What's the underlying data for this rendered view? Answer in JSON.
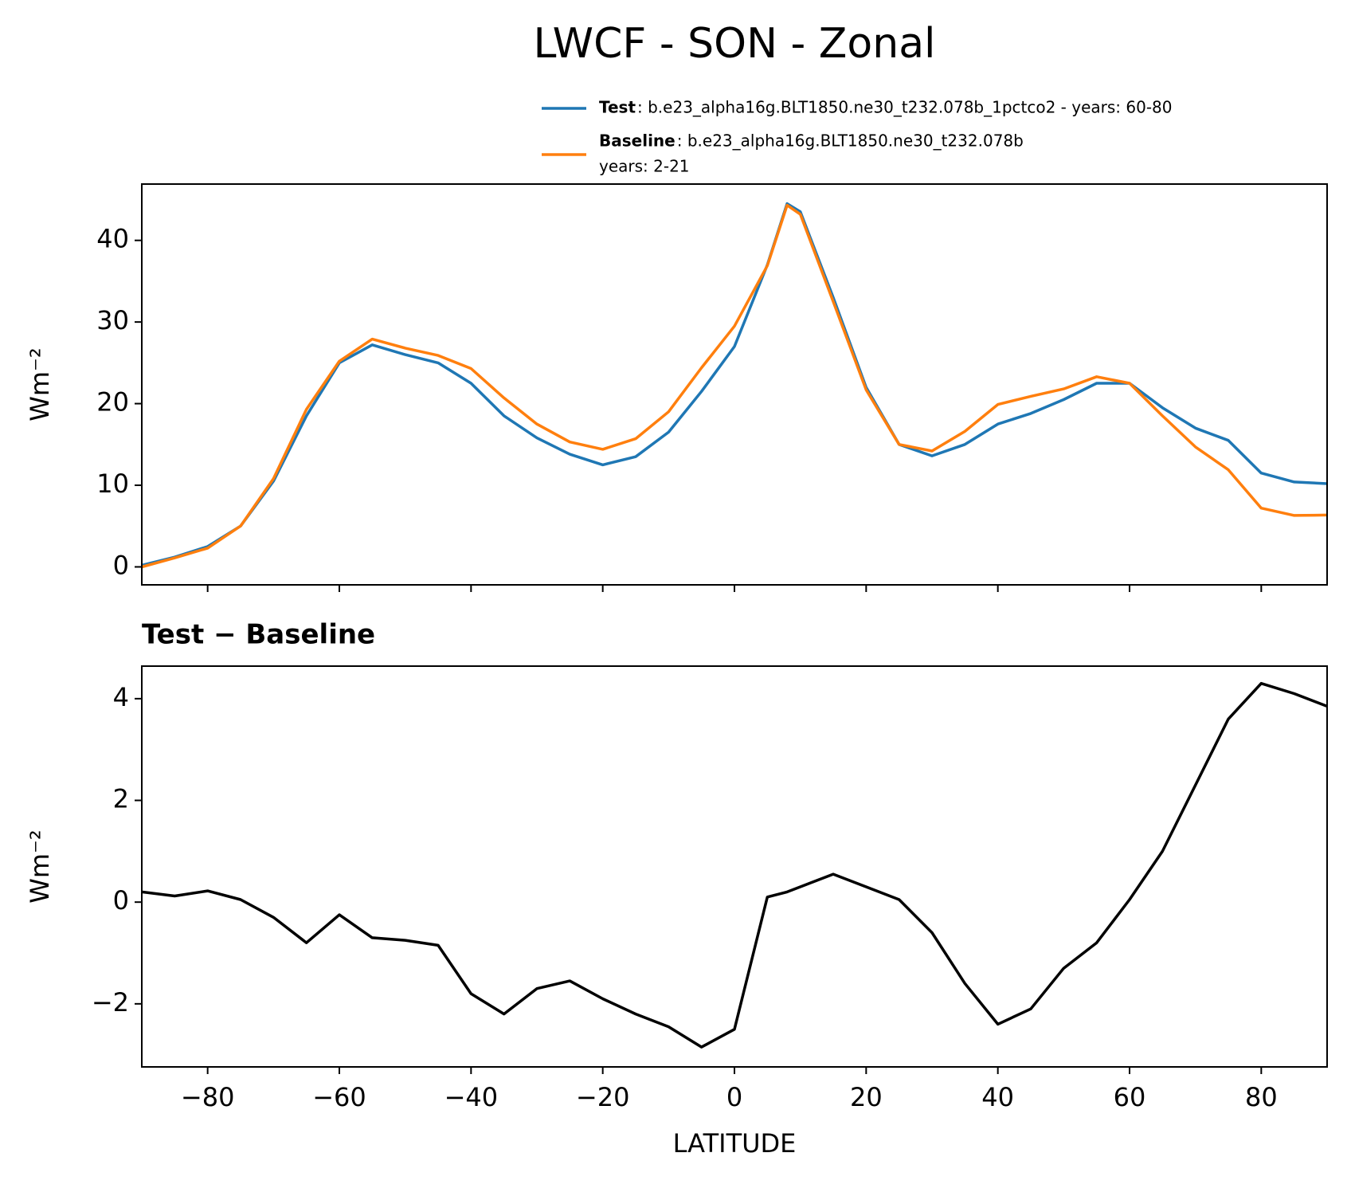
{
  "chart_data": [
    {
      "type": "line",
      "title": "LWCF - SON - Zonal",
      "ylabel": "Wm⁻²",
      "x": [
        -90,
        -85,
        -80,
        -75,
        -70,
        -65,
        -60,
        -55,
        -50,
        -45,
        -40,
        -35,
        -30,
        -25,
        -20,
        -15,
        -10,
        -5,
        0,
        5,
        8,
        10,
        15,
        20,
        25,
        30,
        35,
        40,
        45,
        50,
        55,
        60,
        65,
        70,
        75,
        80,
        85,
        90
      ],
      "series": [
        {
          "name": "Test",
          "label_lines": [
            ": b.e23_alpha16g.BLT1850.ne30_t232.078b_1pctco2 - years: 60-80"
          ],
          "color": "#1f77b4",
          "values": [
            0.2,
            1.2,
            2.5,
            5,
            10.5,
            18.5,
            25,
            27.2,
            26,
            25,
            22.5,
            18.5,
            15.8,
            13.8,
            12.5,
            13.5,
            16.5,
            21.5,
            27,
            37,
            44.5,
            43.5,
            33,
            22,
            15,
            13.6,
            15,
            17.5,
            18.8,
            20.5,
            22.5,
            22.5,
            19.5,
            17,
            15.5,
            11.5,
            10.4,
            10.2
          ]
        },
        {
          "name": "Baseline",
          "label_lines": [
            ": b.e23_alpha16g.BLT1850.ne30_t232.078b",
            "years: 2-21"
          ],
          "color": "#ff7f0e",
          "values": [
            0,
            1.1,
            2.3,
            5,
            10.8,
            19.3,
            25.2,
            27.9,
            26.8,
            25.9,
            24.3,
            20.7,
            17.5,
            15.3,
            14.4,
            15.7,
            19,
            24.4,
            29.5,
            36.9,
            44.3,
            43.2,
            32.5,
            21.7,
            15,
            14.2,
            16.6,
            19.9,
            20.9,
            21.8,
            23.3,
            22.5,
            18.5,
            14.7,
            11.9,
            7.2,
            6.3,
            6.35
          ]
        }
      ],
      "xlim": [
        -90,
        90
      ],
      "xticks": [
        -80,
        -60,
        -40,
        -20,
        0,
        20,
        40,
        60,
        80
      ],
      "sharex": true,
      "ylim": [
        -2.2,
        46.9
      ],
      "yticks": [
        0,
        10,
        20,
        30,
        40
      ]
    },
    {
      "type": "line",
      "title": "Test − Baseline",
      "ylabel": "Wm⁻²",
      "xlabel": "LATITUDE",
      "x": [
        -90,
        -85,
        -80,
        -75,
        -70,
        -65,
        -60,
        -55,
        -50,
        -45,
        -40,
        -35,
        -30,
        -25,
        -20,
        -15,
        -10,
        -5,
        0,
        5,
        8,
        10,
        15,
        20,
        25,
        30,
        35,
        40,
        45,
        50,
        55,
        60,
        65,
        70,
        75,
        80,
        85,
        90
      ],
      "values": [
        0.2,
        0.12,
        0.22,
        0.05,
        -0.3,
        -0.8,
        -0.25,
        -0.7,
        -0.75,
        -0.85,
        -1.8,
        -2.2,
        -1.7,
        -1.55,
        -1.9,
        -2.2,
        -2.45,
        -2.85,
        -2.5,
        0.1,
        0.2,
        0.3,
        0.55,
        0.3,
        0.05,
        -0.6,
        -1.6,
        -2.4,
        -2.1,
        -1.3,
        -0.8,
        0.05,
        1.0,
        2.3,
        3.6,
        4.3,
        4.1,
        3.85
      ],
      "color": "#000000",
      "xlim": [
        -90,
        90
      ],
      "xticks": [
        {
          "value": -80,
          "label": "−80"
        },
        {
          "value": -60,
          "label": "−60"
        },
        {
          "value": -40,
          "label": "−40"
        },
        {
          "value": -20,
          "label": "−20"
        },
        0,
        20,
        40,
        60,
        80
      ],
      "ylim": [
        -3.24,
        4.64
      ],
      "yticks": [
        {
          "value": -2,
          "label": "−2"
        },
        0,
        2,
        4
      ]
    }
  ]
}
